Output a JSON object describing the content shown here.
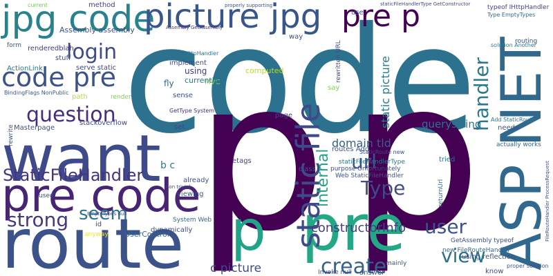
{
  "words": [
    {
      "text": "code",
      "color": "#2c728e"
    },
    {
      "text": "p",
      "color": "#440154"
    },
    {
      "text": "p",
      "color": "#440154"
    },
    {
      "text": "route",
      "color": "#3b528b"
    },
    {
      "text": "want",
      "color": "#3e4a89"
    },
    {
      "text": "pre code",
      "color": "#482475"
    },
    {
      "text": "jpg code",
      "color": "#26828e"
    },
    {
      "text": "picture jpg",
      "color": "#39568c"
    },
    {
      "text": "pre p",
      "color": "#440154"
    },
    {
      "text": "login",
      "color": "#3e4a89"
    },
    {
      "text": "code pre",
      "color": "#3b528b"
    },
    {
      "text": "question",
      "color": "#472d7b"
    },
    {
      "text": "StaticFileHandler",
      "color": "#463480"
    },
    {
      "text": "seem",
      "color": "#2d708e"
    },
    {
      "text": "strong",
      "color": "#453781"
    },
    {
      "text": "p",
      "color": "#20a386"
    },
    {
      "text": "pre",
      "color": "#22a884"
    },
    {
      "text": "ASP NET",
      "color": "#31688e"
    },
    {
      "text": "static file",
      "color": "#3e4a89"
    },
    {
      "text": "internal",
      "color": "#20a386"
    },
    {
      "text": "url",
      "color": "#3b528b"
    },
    {
      "text": "Type",
      "color": "#3e4a89"
    },
    {
      "text": "create",
      "color": "#33638d"
    },
    {
      "text": "user",
      "color": "#3b528b"
    },
    {
      "text": "view",
      "color": "#2d708e"
    },
    {
      "text": "handler",
      "color": "#2a788e"
    },
    {
      "text": "constructorInfo",
      "color": "#433e85"
    },
    {
      "text": "domain tld",
      "color": "#355f8d"
    },
    {
      "text": "static picture",
      "color": "#2a788e"
    },
    {
      "text": "querystring",
      "color": "#2c728e"
    },
    {
      "text": "c picture",
      "color": "#3e4a89"
    },
    {
      "text": "b c",
      "color": "#2a788e"
    },
    {
      "text": "UserControl",
      "color": "#31688e"
    },
    {
      "text": "method",
      "color": "#443983"
    },
    {
      "text": "current",
      "color": "#6ece58"
    },
    {
      "text": "properly supporting",
      "color": "#3b528b"
    },
    {
      "text": "typeof IHttpHandler",
      "color": "#414487"
    },
    {
      "text": "Assembly assembly",
      "color": "#3b528b"
    },
    {
      "text": "Assembly GetAssembly",
      "color": "#46327e"
    },
    {
      "text": "form",
      "color": "#39568c"
    },
    {
      "text": "renderedblah",
      "color": "#453882"
    },
    {
      "text": "stuff",
      "color": "#3e4a89"
    },
    {
      "text": "ActionLink",
      "color": "#2a788e"
    },
    {
      "text": "serve static",
      "color": "#414487"
    },
    {
      "text": "BindingFlags NonPublic",
      "color": "#38588c"
    },
    {
      "text": "path",
      "color": "#b5de2b"
    },
    {
      "text": "render",
      "color": "#7ad151"
    },
    {
      "text": "Masterpage",
      "color": "#3b528b"
    },
    {
      "text": "stackoverflow",
      "color": "#404688"
    },
    {
      "text": "return IHttpHandler",
      "color": "#2c728e"
    },
    {
      "text": "implement",
      "color": "#3e4a89"
    },
    {
      "text": "fly",
      "color": "#31688e"
    },
    {
      "text": "using",
      "color": "#443983"
    },
    {
      "text": "MVC",
      "color": "#8fd744"
    },
    {
      "text": "currently",
      "color": "#2a788e"
    },
    {
      "text": "sense",
      "color": "#3b528b"
    },
    {
      "text": "GetType System",
      "color": "#482878"
    },
    {
      "text": "set",
      "color": "#3e4a89"
    },
    {
      "text": "computed",
      "color": "#b5de2b"
    },
    {
      "text": "page",
      "color": "#3e4a89"
    },
    {
      "text": "etags",
      "color": "#414487"
    },
    {
      "text": "already",
      "color": "#3b528b"
    },
    {
      "text": "viewing",
      "color": "#38588c"
    },
    {
      "text": "dynamically",
      "color": "#3e4a89"
    },
    {
      "text": "System Web",
      "color": "#31688e"
    },
    {
      "text": "id",
      "color": "#3e4a89"
    },
    {
      "text": "anyway",
      "color": "#fde725"
    },
    {
      "text": "used",
      "color": "#3b528b"
    },
    {
      "text": "Invoke null",
      "color": "#3e4a89"
    },
    {
      "text": "answer",
      "color": "#3b528b"
    },
    {
      "text": "mainly",
      "color": "#39568c"
    },
    {
      "text": "using reflection",
      "color": "#3b528b"
    },
    {
      "text": "know",
      "color": "#3e4a89"
    },
    {
      "text": "new FileRouteHandler",
      "color": "#31688e"
    },
    {
      "text": "GetAssembly typeof",
      "color": "#3e4a89"
    },
    {
      "text": "tried",
      "color": "#2d708e"
    },
    {
      "text": "needs",
      "color": "#3b528b"
    },
    {
      "text": "actually works",
      "color": "#31688e"
    },
    {
      "text": "Add StaticRoute",
      "color": "#2a788e"
    },
    {
      "text": "routes Add",
      "color": "#3b528b"
    },
    {
      "text": "StaticRoute new",
      "color": "#3e4a89"
    },
    {
      "text": "staticFileHandlerType",
      "color": "#2a788e"
    },
    {
      "text": "Web StaticFileHandler",
      "color": "#3b528b"
    },
    {
      "text": "purpose Unfortunately",
      "color": "#3e4a89"
    },
    {
      "text": "class",
      "color": "#3b528b"
    },
    {
      "text": "way",
      "color": "#3e4a89"
    },
    {
      "text": "use",
      "color": "#3b528b"
    },
    {
      "text": "say",
      "color": "#7ad151"
    },
    {
      "text": "routing",
      "color": "#3b528b"
    },
    {
      "text": "solution Another",
      "color": "#2a788e"
    },
    {
      "text": "Type EmptyTypes",
      "color": "#31688e"
    },
    {
      "text": "proper solution",
      "color": "#3b528b"
    },
    {
      "text": "staticFileHandlerType GetConstructor",
      "color": "#3e4a89"
    },
    {
      "text": "rewritten URL",
      "color": "#3e4a89"
    },
    {
      "text": "FileRouteHandler ProcessRequest",
      "color": "#3b528b"
    },
    {
      "text": "returnUrl",
      "color": "#31688e"
    },
    {
      "text": "rewrite",
      "color": "#3b528b"
    },
    {
      "text": "non trivial",
      "color": "#3e4a89"
    },
    {
      "text": "EmptyTypes null",
      "color": "#3b528b"
    }
  ]
}
